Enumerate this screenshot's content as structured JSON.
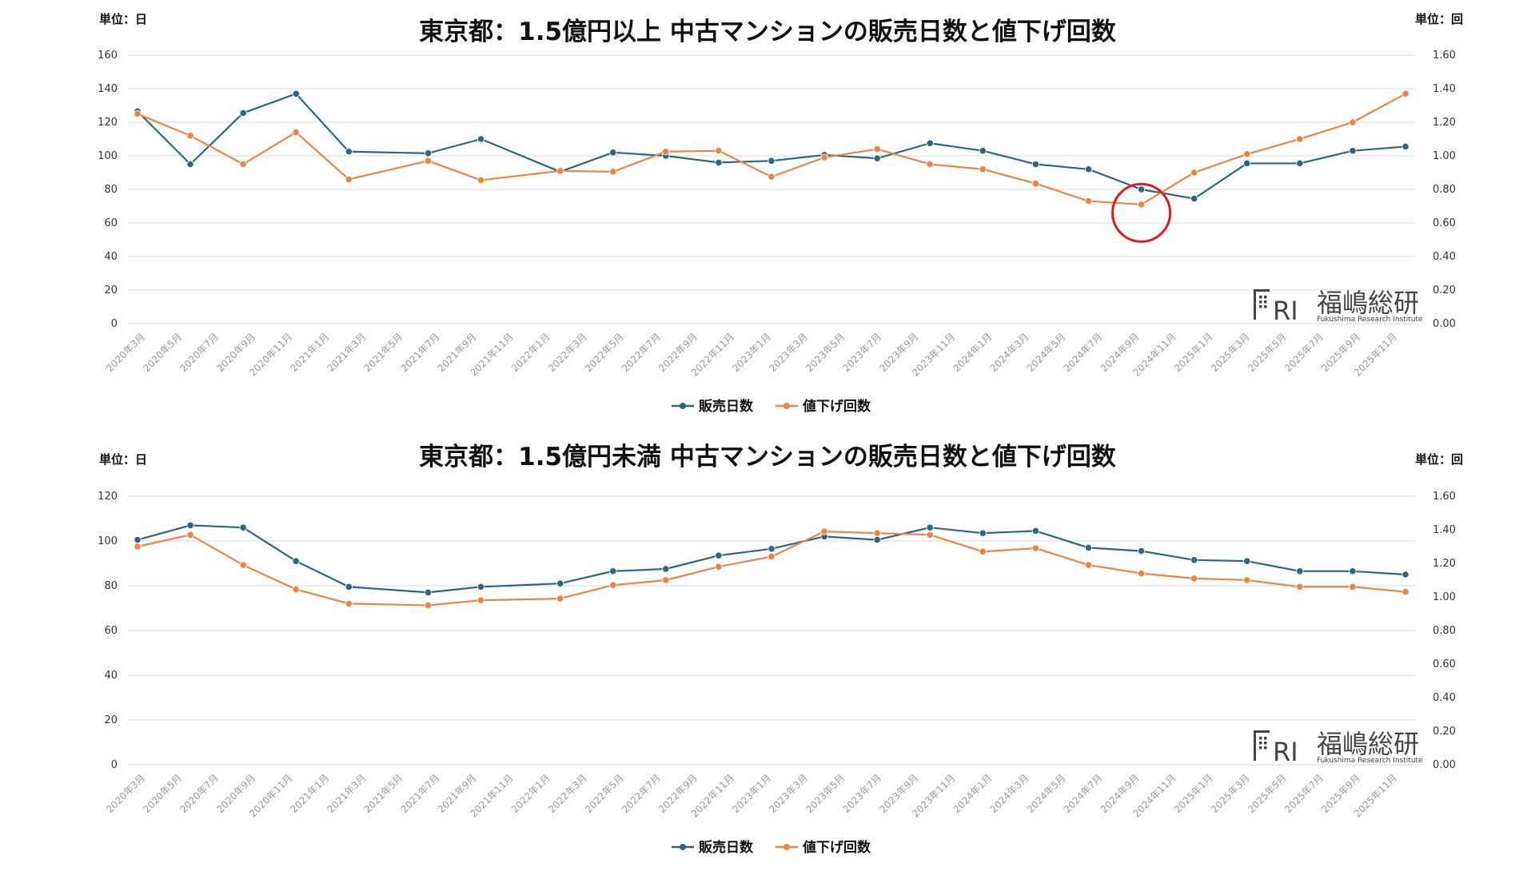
{
  "colors": {
    "days": "#2e6680",
    "price_cuts": "#ee8443",
    "highlight": "#d62020"
  },
  "logo": {
    "mark": "FRI",
    "name": "福嶋総研",
    "subtitle": "Fukushima Research Institute"
  },
  "chart_data": [
    {
      "type": "line",
      "title": "東京都：1.5億円以上 中古マンションの販売日数と値下げ回数",
      "left_unit": "単位：日",
      "right_unit": "単位：回",
      "x": [
        "2020年3月",
        "2020年5月",
        "2020年7月",
        "2020年9月",
        "2020年11月",
        "2021年1月",
        "2021年3月",
        "2021年5月",
        "2021年7月",
        "2021年9月",
        "2021年11月",
        "2022年1月",
        "2022年3月",
        "2022年5月",
        "2022年7月",
        "2022年9月",
        "2022年11月",
        "2023年1月",
        "2023年3月",
        "2023年5月",
        "2023年7月",
        "2023年9月",
        "2023年11月",
        "2024年1月",
        "2024年3月",
        "2024年5月",
        "2024年7月",
        "2024年9月",
        "2024年11月",
        "2025年1月",
        "2025年3月",
        "2025年5月",
        "2025年7月",
        "2025年9月",
        "2025年11月"
      ],
      "ylim_left": [
        0,
        160
      ],
      "yticks_left": [
        "0",
        "20",
        "40",
        "60",
        "80",
        "100",
        "120",
        "140",
        "160"
      ],
      "ylim_right": [
        0,
        1.6
      ],
      "yticks_right": [
        "0.00",
        "0.20",
        "0.40",
        "0.60",
        "0.80",
        "1.00",
        "1.20",
        "1.40",
        "1.60"
      ],
      "series": [
        {
          "name": "販売日数",
          "axis": "left",
          "color": "#2e6680",
          "points": [
            [
              0,
              126.5
            ],
            [
              2,
              95
            ],
            [
              4,
              125.5
            ],
            [
              6,
              137
            ],
            [
              8,
              102.5
            ],
            [
              11,
              101.5
            ],
            [
              13,
              110
            ],
            [
              16,
              90.5
            ],
            [
              18,
              102
            ],
            [
              20,
              100
            ],
            [
              22,
              96
            ],
            [
              24,
              97
            ],
            [
              26,
              100.5
            ],
            [
              28,
              98.5
            ],
            [
              30,
              107.5
            ],
            [
              32,
              103
            ],
            [
              34,
              95
            ],
            [
              36,
              92
            ],
            [
              38,
              80
            ],
            [
              40,
              74.5
            ],
            [
              42,
              95.5
            ],
            [
              44,
              95.5
            ],
            [
              46,
              103
            ],
            [
              48,
              105.5
            ]
          ]
        },
        {
          "name": "値下げ回数",
          "axis": "right",
          "color": "#ee8443",
          "points": [
            [
              0,
              1.25
            ],
            [
              2,
              1.12
            ],
            [
              4,
              0.95
            ],
            [
              6,
              1.14
            ],
            [
              8,
              0.86
            ],
            [
              11,
              0.97
            ],
            [
              13,
              0.855
            ],
            [
              16,
              0.91
            ],
            [
              18,
              0.905
            ],
            [
              20,
              1.025
            ],
            [
              22,
              1.03
            ],
            [
              24,
              0.875
            ],
            [
              26,
              0.99
            ],
            [
              28,
              1.04
            ],
            [
              30,
              0.95
            ],
            [
              32,
              0.92
            ],
            [
              34,
              0.835
            ],
            [
              36,
              0.73
            ],
            [
              38,
              0.71
            ],
            [
              40,
              0.9
            ],
            [
              42,
              1.01
            ],
            [
              44,
              1.1
            ],
            [
              46,
              1.2
            ],
            [
              48,
              1.37
            ]
          ]
        }
      ],
      "annotations": [
        {
          "type": "circle",
          "x": 38,
          "y": 0.66,
          "axis": "right"
        }
      ]
    },
    {
      "type": "line",
      "title": "東京都：1.5億円未満 中古マンションの販売日数と値下げ回数",
      "left_unit": "単位：日",
      "right_unit": "単位：回",
      "x": [
        "2020年3月",
        "2020年5月",
        "2020年7月",
        "2020年9月",
        "2020年11月",
        "2021年1月",
        "2021年3月",
        "2021年5月",
        "2021年7月",
        "2021年9月",
        "2021年11月",
        "2022年1月",
        "2022年3月",
        "2022年5月",
        "2022年7月",
        "2022年9月",
        "2022年11月",
        "2023年1月",
        "2023年3月",
        "2023年5月",
        "2023年7月",
        "2023年9月",
        "2023年11月",
        "2024年1月",
        "2024年3月",
        "2024年5月",
        "2024年7月",
        "2024年9月",
        "2024年11月",
        "2025年1月",
        "2025年3月",
        "2025年5月",
        "2025年7月",
        "2025年9月",
        "2025年11月"
      ],
      "ylim_left": [
        0,
        120
      ],
      "yticks_left": [
        "0",
        "20",
        "40",
        "60",
        "80",
        "100",
        "120"
      ],
      "ylim_right": [
        0,
        1.6
      ],
      "yticks_right": [
        "0.00",
        "0.20",
        "0.40",
        "0.60",
        "0.80",
        "1.00",
        "1.20",
        "1.40",
        "1.60"
      ],
      "series": [
        {
          "name": "販売日数",
          "axis": "left",
          "color": "#2e6680",
          "points": [
            [
              0,
              100.5
            ],
            [
              2,
              107
            ],
            [
              4,
              106
            ],
            [
              6,
              91
            ],
            [
              8,
              79.5
            ],
            [
              11,
              77
            ],
            [
              13,
              79.5
            ],
            [
              16,
              81
            ],
            [
              18,
              86.5
            ],
            [
              20,
              87.5
            ],
            [
              22,
              93.5
            ],
            [
              24,
              96.5
            ],
            [
              26,
              102
            ],
            [
              28,
              100.5
            ],
            [
              30,
              106
            ],
            [
              32,
              103.5
            ],
            [
              34,
              104.5
            ],
            [
              36,
              97
            ],
            [
              38,
              95.5
            ],
            [
              40,
              91.5
            ],
            [
              42,
              91
            ],
            [
              44,
              86.5
            ],
            [
              46,
              86.5
            ],
            [
              48,
              85
            ]
          ]
        },
        {
          "name": "値下げ回数",
          "axis": "right",
          "color": "#ee8443",
          "points": [
            [
              0,
              1.3
            ],
            [
              2,
              1.37
            ],
            [
              4,
              1.19
            ],
            [
              6,
              1.045
            ],
            [
              8,
              0.96
            ],
            [
              11,
              0.95
            ],
            [
              13,
              0.98
            ],
            [
              16,
              0.99
            ],
            [
              18,
              1.07
            ],
            [
              20,
              1.1
            ],
            [
              22,
              1.18
            ],
            [
              24,
              1.24
            ],
            [
              26,
              1.39
            ],
            [
              28,
              1.38
            ],
            [
              30,
              1.37
            ],
            [
              32,
              1.27
            ],
            [
              34,
              1.29
            ],
            [
              36,
              1.19
            ],
            [
              38,
              1.14
            ],
            [
              40,
              1.11
            ],
            [
              42,
              1.1
            ],
            [
              44,
              1.06
            ],
            [
              46,
              1.06
            ],
            [
              48,
              1.03
            ]
          ]
        }
      ],
      "annotations": []
    }
  ]
}
